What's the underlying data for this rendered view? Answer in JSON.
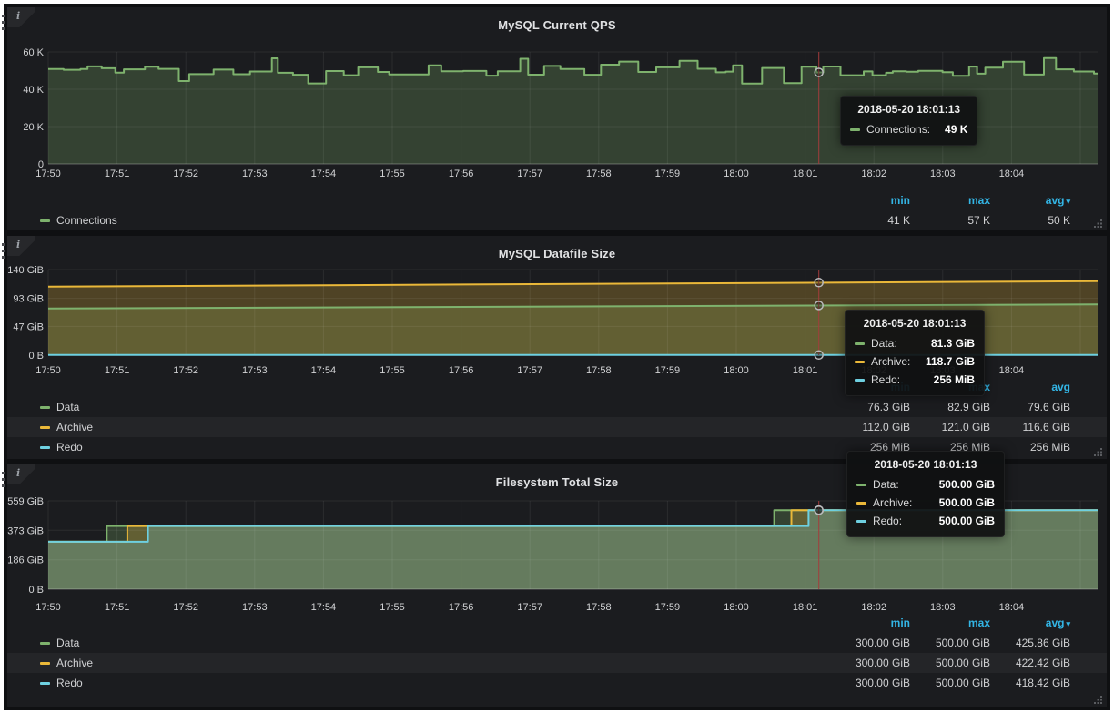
{
  "colors": {
    "green": "#7eb26d",
    "yellow": "#eab839",
    "cyan": "#6ed0e0",
    "header_blue": "#33b5e5",
    "crosshair_red": "#a33c3c",
    "page_bg": "#0f1012",
    "panel_bg": "#1b1c1f"
  },
  "icons": {
    "info": "i",
    "caret_down": "▾"
  },
  "x_ticks": [
    "17:50",
    "17:51",
    "17:52",
    "17:53",
    "17:54",
    "17:55",
    "17:56",
    "17:57",
    "17:58",
    "17:59",
    "18:00",
    "18:01",
    "18:02",
    "18:03",
    "18:04"
  ],
  "panels": [
    {
      "title": "MySQL Current QPS",
      "y_ticks": [
        "0",
        "20 K",
        "40 K",
        "60 K"
      ],
      "legend": {
        "headers": {
          "min": "min",
          "max": "max",
          "avg": "avg"
        },
        "rows": [
          {
            "label": "Connections",
            "color": "#7eb26d",
            "min": "41 K",
            "max": "57 K",
            "avg": "50 K"
          }
        ]
      },
      "tooltip": {
        "time": "2018-05-20 18:01:13",
        "rows": [
          {
            "label": "Connections:",
            "value": "49 K",
            "color": "#7eb26d"
          }
        ]
      }
    },
    {
      "title": "MySQL Datafile Size",
      "y_ticks": [
        "0 B",
        "47 GiB",
        "93 GiB",
        "140 GiB"
      ],
      "legend": {
        "headers": {
          "min": "min",
          "max": "max",
          "avg": "avg"
        },
        "rows": [
          {
            "label": "Data",
            "color": "#7eb26d",
            "min": "76.3 GiB",
            "max": "82.9 GiB",
            "avg": "79.6 GiB"
          },
          {
            "label": "Archive",
            "color": "#eab839",
            "min": "112.0 GiB",
            "max": "121.0 GiB",
            "avg": "116.6 GiB"
          },
          {
            "label": "Redo",
            "color": "#6ed0e0",
            "min": "256 MiB",
            "max": "256 MiB",
            "avg": "256 MiB"
          }
        ]
      },
      "tooltip": {
        "time": "2018-05-20 18:01:13",
        "rows": [
          {
            "label": "Data:",
            "value": "81.3 GiB",
            "color": "#7eb26d"
          },
          {
            "label": "Archive:",
            "value": "118.7 GiB",
            "color": "#eab839"
          },
          {
            "label": "Redo:",
            "value": "256 MiB",
            "color": "#6ed0e0"
          }
        ]
      }
    },
    {
      "title": "Filesystem Total Size",
      "y_ticks": [
        "0 B",
        "186 GiB",
        "373 GiB",
        "559 GiB"
      ],
      "legend": {
        "headers": {
          "min": "min",
          "max": "max",
          "avg": "avg"
        },
        "rows": [
          {
            "label": "Data",
            "color": "#7eb26d",
            "min": "300.00 GiB",
            "max": "500.00 GiB",
            "avg": "425.86 GiB"
          },
          {
            "label": "Archive",
            "color": "#eab839",
            "min": "300.00 GiB",
            "max": "500.00 GiB",
            "avg": "422.42 GiB"
          },
          {
            "label": "Redo",
            "color": "#6ed0e0",
            "min": "300.00 GiB",
            "max": "500.00 GiB",
            "avg": "418.42 GiB"
          }
        ]
      },
      "tooltip": {
        "time": "2018-05-20 18:01:13",
        "rows": [
          {
            "label": "Data:",
            "value": "500.00 GiB",
            "color": "#7eb26d"
          },
          {
            "label": "Archive:",
            "value": "500.00 GiB",
            "color": "#eab839"
          },
          {
            "label": "Redo:",
            "value": "500.00 GiB",
            "color": "#6ed0e0"
          }
        ]
      }
    }
  ],
  "chart_data": [
    {
      "type": "line",
      "title": "MySQL Current QPS",
      "x_start": "17:50",
      "x_end": "18:05",
      "x_tick_interval_min": 1,
      "ylim": [
        0,
        60000
      ],
      "y_tick_values": [
        0,
        20000,
        40000,
        60000
      ],
      "grid": true,
      "legend_position": "bottom",
      "series": [
        {
          "name": "Connections",
          "color": "#7eb26d",
          "fill_opacity": 0.25,
          "stats": {
            "min": 41000,
            "max": 57000,
            "avg": 50000
          },
          "generator": {
            "kind": "noisy-step",
            "seed": 11,
            "normal_range": [
              47200,
              53200
            ],
            "dip_range": [
              41200,
              45500
            ],
            "dip_prob": 0.07,
            "peak_range": [
              54500,
              57000
            ],
            "peak_prob": 0.09,
            "seg_min_minutes": 0.08,
            "seg_extra_minutes": 0.28
          }
        }
      ],
      "cursor": {
        "time": "2018-05-20 18:01:13",
        "t_minutes": 11.2,
        "values": [
          49000
        ]
      }
    },
    {
      "type": "line",
      "title": "MySQL Datafile Size",
      "unit": "GiB",
      "x_start": "17:50",
      "x_end": "18:05",
      "x_tick_interval_min": 1,
      "ylim": [
        0,
        140
      ],
      "y_tick_values": [
        0,
        47,
        93,
        140
      ],
      "grid": true,
      "legend_position": "bottom",
      "series": [
        {
          "name": "Data",
          "color": "#7eb26d",
          "fill_opacity": 0.25,
          "kind": "ramp",
          "start": 76.3,
          "end": 82.9,
          "stats": {
            "min": 76.3,
            "max": 82.9,
            "avg": 79.6
          }
        },
        {
          "name": "Archive",
          "color": "#eab839",
          "fill_opacity": 0.25,
          "kind": "ramp",
          "start": 112.0,
          "end": 121.0,
          "stats": {
            "min": 112.0,
            "max": 121.0,
            "avg": 116.6
          }
        },
        {
          "name": "Redo",
          "color": "#6ed0e0",
          "fill_opacity": 0.25,
          "kind": "const",
          "value": 0.25,
          "stats": {
            "min": 0.25,
            "max": 0.25,
            "avg": 0.25
          }
        }
      ],
      "cursor": {
        "time": "2018-05-20 18:01:13",
        "t_minutes": 11.2,
        "values": [
          81.3,
          118.7,
          0.25
        ]
      }
    },
    {
      "type": "line",
      "title": "Filesystem Total Size",
      "unit": "GiB",
      "x_start": "17:50",
      "x_end": "18:05",
      "x_tick_interval_min": 1,
      "ylim": [
        0,
        559
      ],
      "y_tick_values": [
        0,
        186,
        373,
        559
      ],
      "grid": true,
      "legend_position": "bottom",
      "series": [
        {
          "name": "Data",
          "color": "#7eb26d",
          "fill_opacity": 0.25,
          "kind": "steps",
          "points": [
            [
              0,
              300
            ],
            [
              0.85,
              400
            ],
            [
              10.55,
              500
            ]
          ],
          "stats": {
            "min": 300.0,
            "max": 500.0,
            "avg": 425.86
          }
        },
        {
          "name": "Archive",
          "color": "#eab839",
          "fill_opacity": 0.25,
          "kind": "steps",
          "points": [
            [
              0,
              300
            ],
            [
              1.15,
              400
            ],
            [
              10.8,
              500
            ]
          ],
          "stats": {
            "min": 300.0,
            "max": 500.0,
            "avg": 422.42
          }
        },
        {
          "name": "Redo",
          "color": "#6ed0e0",
          "fill_opacity": 0.25,
          "kind": "steps",
          "points": [
            [
              0,
              300
            ],
            [
              1.45,
              400
            ],
            [
              11.05,
              500
            ]
          ],
          "stats": {
            "min": 300.0,
            "max": 500.0,
            "avg": 418.42
          }
        }
      ],
      "cursor": {
        "time": "2018-05-20 18:01:13",
        "t_minutes": 11.2,
        "values": [
          500,
          500,
          500
        ]
      }
    }
  ]
}
